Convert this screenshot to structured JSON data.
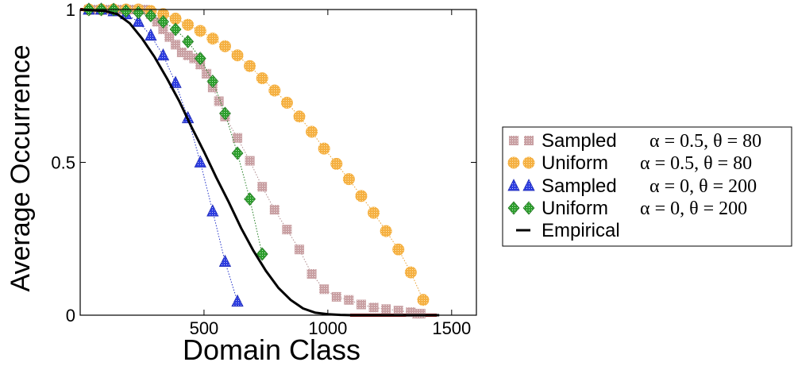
{
  "chart_data": {
    "type": "scatter",
    "xlabel": "Domain Class",
    "ylabel": "Average Occurrence",
    "xlim": [
      0,
      1600
    ],
    "ylim": [
      0,
      1
    ],
    "xticks": [
      500,
      1000,
      1500
    ],
    "yticks": [
      0,
      0.5,
      1
    ],
    "ytick_labels": [
      "0",
      "0.5",
      "1"
    ],
    "grid": false,
    "legend_position": "right",
    "series": [
      {
        "name": "Sampled",
        "params": "α = 0.5, θ = 80",
        "marker": "square",
        "color": "#c9a0a3",
        "x": [
          35,
          60,
          85,
          110,
          135,
          160,
          185,
          210,
          235,
          260,
          285,
          310,
          335,
          360,
          385,
          410,
          435,
          460,
          485,
          510,
          535,
          560,
          585,
          635,
          685,
          735,
          785,
          835,
          885,
          935,
          985,
          1035,
          1085,
          1135,
          1185,
          1235,
          1285,
          1335,
          1360,
          1375
        ],
        "y": [
          1.0,
          1.0,
          1.0,
          1.0,
          1.0,
          1.0,
          1.0,
          1.0,
          1.0,
          1.0,
          0.985,
          0.96,
          0.935,
          0.91,
          0.885,
          0.86,
          0.85,
          0.84,
          0.82,
          0.79,
          0.745,
          0.7,
          0.65,
          0.58,
          0.505,
          0.42,
          0.345,
          0.28,
          0.215,
          0.135,
          0.085,
          0.06,
          0.05,
          0.035,
          0.025,
          0.02,
          0.015,
          0.01,
          0.005,
          0.005
        ]
      },
      {
        "name": "Uniform",
        "params": "α = 0.5, θ = 80",
        "marker": "circle",
        "color": "#f5b042",
        "x": [
          35,
          85,
          135,
          185,
          235,
          285,
          335,
          385,
          435,
          485,
          535,
          585,
          635,
          685,
          735,
          785,
          835,
          885,
          935,
          985,
          1035,
          1085,
          1135,
          1185,
          1235,
          1285,
          1335,
          1385
        ],
        "y": [
          1.0,
          1.0,
          1.0,
          1.0,
          1.0,
          0.995,
          0.985,
          0.97,
          0.95,
          0.93,
          0.905,
          0.88,
          0.85,
          0.815,
          0.775,
          0.735,
          0.695,
          0.65,
          0.6,
          0.545,
          0.495,
          0.445,
          0.39,
          0.335,
          0.275,
          0.215,
          0.14,
          0.05
        ]
      },
      {
        "name": "Sampled",
        "params": "α = 0, θ = 200",
        "marker": "triangle",
        "color": "#3333dd",
        "x": [
          35,
          85,
          135,
          185,
          235,
          285,
          335,
          385,
          435,
          485,
          535,
          585,
          635
        ],
        "y": [
          1.0,
          1.0,
          0.995,
          0.985,
          0.96,
          0.915,
          0.85,
          0.76,
          0.645,
          0.5,
          0.34,
          0.175,
          0.045
        ]
      },
      {
        "name": "Uniform",
        "params": "α = 0, θ = 200",
        "marker": "diamond",
        "color": "#2e9e2e",
        "x": [
          35,
          85,
          135,
          185,
          235,
          285,
          335,
          385,
          435,
          485,
          535,
          585,
          635,
          685,
          735
        ],
        "y": [
          1.0,
          1.0,
          1.0,
          0.995,
          0.99,
          0.98,
          0.96,
          0.935,
          0.895,
          0.84,
          0.765,
          0.66,
          0.53,
          0.38,
          0.2
        ]
      },
      {
        "name": "Empirical",
        "params": "",
        "marker": "line",
        "color": "#000000",
        "x": [
          0,
          100,
          150,
          200,
          250,
          300,
          350,
          400,
          450,
          500,
          550,
          600,
          650,
          700,
          750,
          800,
          850,
          900,
          950,
          1000,
          1050,
          1100,
          1150,
          1200,
          1250,
          1300,
          1350,
          1400,
          1450
        ],
        "y": [
          1.0,
          0.995,
          0.985,
          0.955,
          0.905,
          0.845,
          0.775,
          0.7,
          0.615,
          0.535,
          0.45,
          0.37,
          0.285,
          0.21,
          0.145,
          0.09,
          0.05,
          0.022,
          0.008,
          0.003,
          0.001,
          0.0,
          0.0,
          0.0,
          0.0,
          0.0,
          0.0,
          0.0,
          0.0
        ]
      }
    ]
  }
}
